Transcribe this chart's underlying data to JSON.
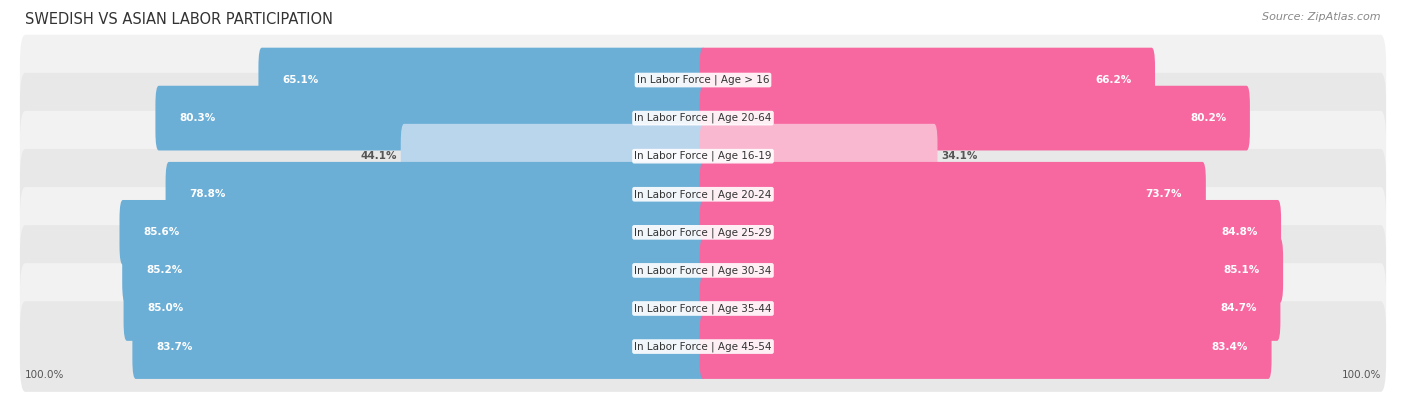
{
  "title": "SWEDISH VS ASIAN LABOR PARTICIPATION",
  "source": "Source: ZipAtlas.com",
  "categories": [
    "In Labor Force | Age > 16",
    "In Labor Force | Age 20-64",
    "In Labor Force | Age 16-19",
    "In Labor Force | Age 20-24",
    "In Labor Force | Age 25-29",
    "In Labor Force | Age 30-34",
    "In Labor Force | Age 35-44",
    "In Labor Force | Age 45-54"
  ],
  "swedish_values": [
    65.1,
    80.3,
    44.1,
    78.8,
    85.6,
    85.2,
    85.0,
    83.7
  ],
  "asian_values": [
    66.2,
    80.2,
    34.1,
    73.7,
    84.8,
    85.1,
    84.7,
    83.4
  ],
  "swedish_color": "#6baed6",
  "asian_color": "#f768a1",
  "swedish_color_light": "#bad6ed",
  "asian_color_light": "#f9b8d0",
  "row_bg_odd": "#f2f2f2",
  "row_bg_even": "#e8e8e8",
  "max_value": 100.0,
  "title_fontsize": 10.5,
  "label_fontsize": 7.5,
  "value_fontsize": 7.5,
  "legend_fontsize": 8.5,
  "source_fontsize": 8,
  "axis_label": "100.0%",
  "background_color": "#ffffff",
  "light_row_indices": [
    2
  ]
}
